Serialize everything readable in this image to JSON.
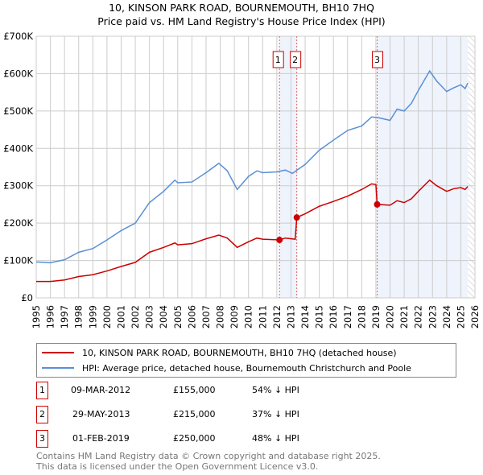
{
  "chart_data": {
    "type": "line",
    "title": "10, KINSON PARK ROAD, BOURNEMOUTH, BH10 7HQ",
    "subtitle": "Price paid vs. HM Land Registry's House Price Index (HPI)",
    "xlim": [
      1995,
      2026
    ],
    "ylim": [
      0,
      700000
    ],
    "x_ticks": [
      "1995",
      "1996",
      "1997",
      "1998",
      "1999",
      "2000",
      "2001",
      "2002",
      "2003",
      "2004",
      "2005",
      "2006",
      "2007",
      "2008",
      "2009",
      "2010",
      "2011",
      "2012",
      "2013",
      "2014",
      "2015",
      "2016",
      "2017",
      "2018",
      "2019",
      "2020",
      "2021",
      "2022",
      "2023",
      "2024",
      "2025",
      "2026"
    ],
    "y_ticks": [
      {
        "v": 0,
        "label": "£0"
      },
      {
        "v": 100000,
        "label": "£100K"
      },
      {
        "v": 200000,
        "label": "£200K"
      },
      {
        "v": 300000,
        "label": "£300K"
      },
      {
        "v": 400000,
        "label": "£400K"
      },
      {
        "v": 500000,
        "label": "£500K"
      },
      {
        "v": 600000,
        "label": "£600K"
      },
      {
        "v": 700000,
        "label": "£700K"
      }
    ],
    "grid": true,
    "series": [
      {
        "name": "10, KINSON PARK ROAD, BOURNEMOUTH, BH10 7HQ (detached house)",
        "color": "#cc0000",
        "x": [
          1995,
          1996,
          1997,
          1998,
          1999,
          2000,
          2001,
          2002,
          2003,
          2004,
          2004.8,
          2005,
          2006,
          2007,
          2007.9,
          2008.5,
          2009.2,
          2010,
          2010.6,
          2011,
          2012.19,
          2012.6,
          2013.3,
          2013.41,
          2014,
          2015,
          2016,
          2017,
          2018,
          2018.7,
          2019.0,
          2019.09,
          2020,
          2020.5,
          2021,
          2021.5,
          2022,
          2022.8,
          2023.3,
          2024,
          2024.5,
          2025,
          2025.3,
          2025.5
        ],
        "y": [
          44000,
          44000,
          48000,
          57000,
          62000,
          72000,
          84000,
          95000,
          122000,
          135000,
          147000,
          142000,
          145000,
          158000,
          168000,
          160000,
          135000,
          150000,
          160000,
          157000,
          155000,
          160000,
          157000,
          215000,
          225000,
          245000,
          258000,
          272000,
          290000,
          305000,
          303000,
          250000,
          248000,
          260000,
          255000,
          265000,
          285000,
          315000,
          300000,
          285000,
          292000,
          295000,
          290000,
          298000
        ]
      },
      {
        "name": "HPI: Average price, detached house, Bournemouth Christchurch and Poole",
        "color": "#5b8fd4",
        "x": [
          1995,
          1996,
          1997,
          1998,
          1999,
          2000,
          2001,
          2002,
          2003,
          2004,
          2004.8,
          2005,
          2006,
          2007,
          2007.9,
          2008.5,
          2009.2,
          2010,
          2010.6,
          2011,
          2012,
          2012.6,
          2013.1,
          2014,
          2015,
          2016,
          2017,
          2018,
          2018.7,
          2019.2,
          2020,
          2020.5,
          2021,
          2021.5,
          2022,
          2022.8,
          2023.3,
          2024,
          2024.5,
          2025,
          2025.3,
          2025.5
        ],
        "y": [
          96000,
          94000,
          102000,
          122000,
          132000,
          155000,
          180000,
          200000,
          255000,
          285000,
          315000,
          308000,
          310000,
          335000,
          360000,
          340000,
          290000,
          325000,
          340000,
          335000,
          337000,
          342000,
          333000,
          357000,
          395000,
          422000,
          448000,
          460000,
          484000,
          482000,
          475000,
          505000,
          500000,
          520000,
          555000,
          607000,
          580000,
          552000,
          562000,
          570000,
          560000,
          575000
        ]
      }
    ],
    "sales": [
      {
        "label": "1",
        "x": 2012.19,
        "y": 155000,
        "date": "09-MAR-2012",
        "price": "£155,000",
        "hpi": "54% ↓ HPI"
      },
      {
        "label": "2",
        "x": 2013.41,
        "y": 215000,
        "date": "29-MAY-2013",
        "price": "£215,000",
        "hpi": "37% ↓ HPI"
      },
      {
        "label": "3",
        "x": 2019.09,
        "y": 250000,
        "date": "01-FEB-2019",
        "price": "£250,000",
        "hpi": "48% ↓ HPI"
      }
    ],
    "forecast_start": 2025.5,
    "legend_position": "bottom"
  },
  "footer": [
    "Contains HM Land Registry data © Crown copyright and database right 2025.",
    "This data is licensed under the Open Government Licence v3.0."
  ]
}
